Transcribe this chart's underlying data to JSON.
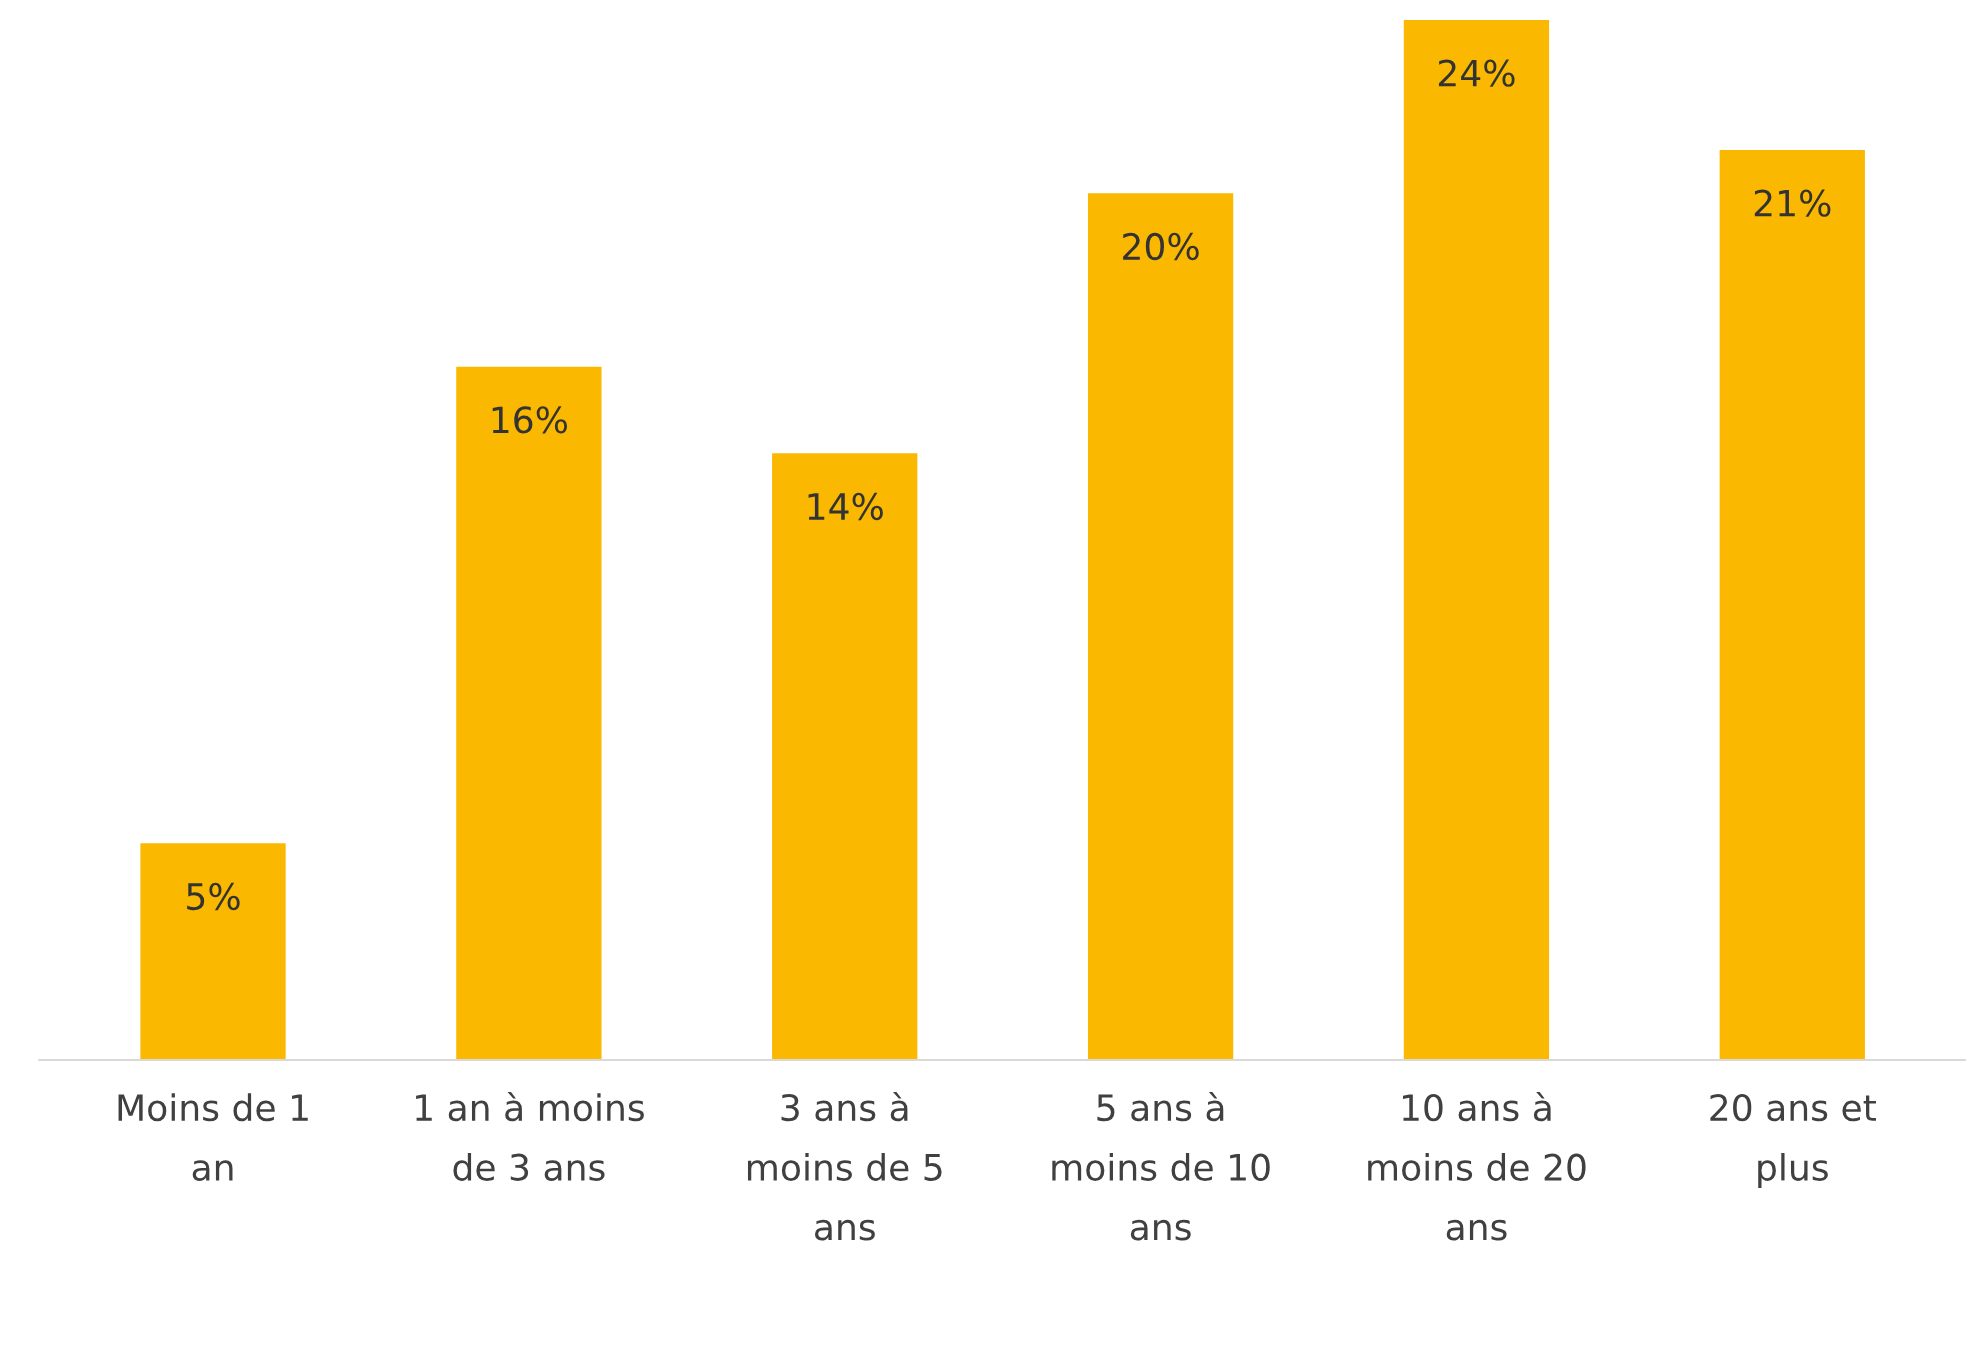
{
  "chart_data": {
    "type": "bar",
    "categories": [
      "Moins de 1 an",
      "1 an à moins de 3 ans",
      "3 ans à moins de 5 ans",
      "5 ans à moins de 10 ans",
      "10 ans à moins de 20 ans",
      "20 ans et plus"
    ],
    "values": [
      5,
      16,
      14,
      20,
      24,
      21
    ],
    "value_labels": [
      "5%",
      "16%",
      "14%",
      "20%",
      "24%",
      "21%"
    ],
    "color": "#fbb800",
    "grid": false,
    "legend": false
  }
}
